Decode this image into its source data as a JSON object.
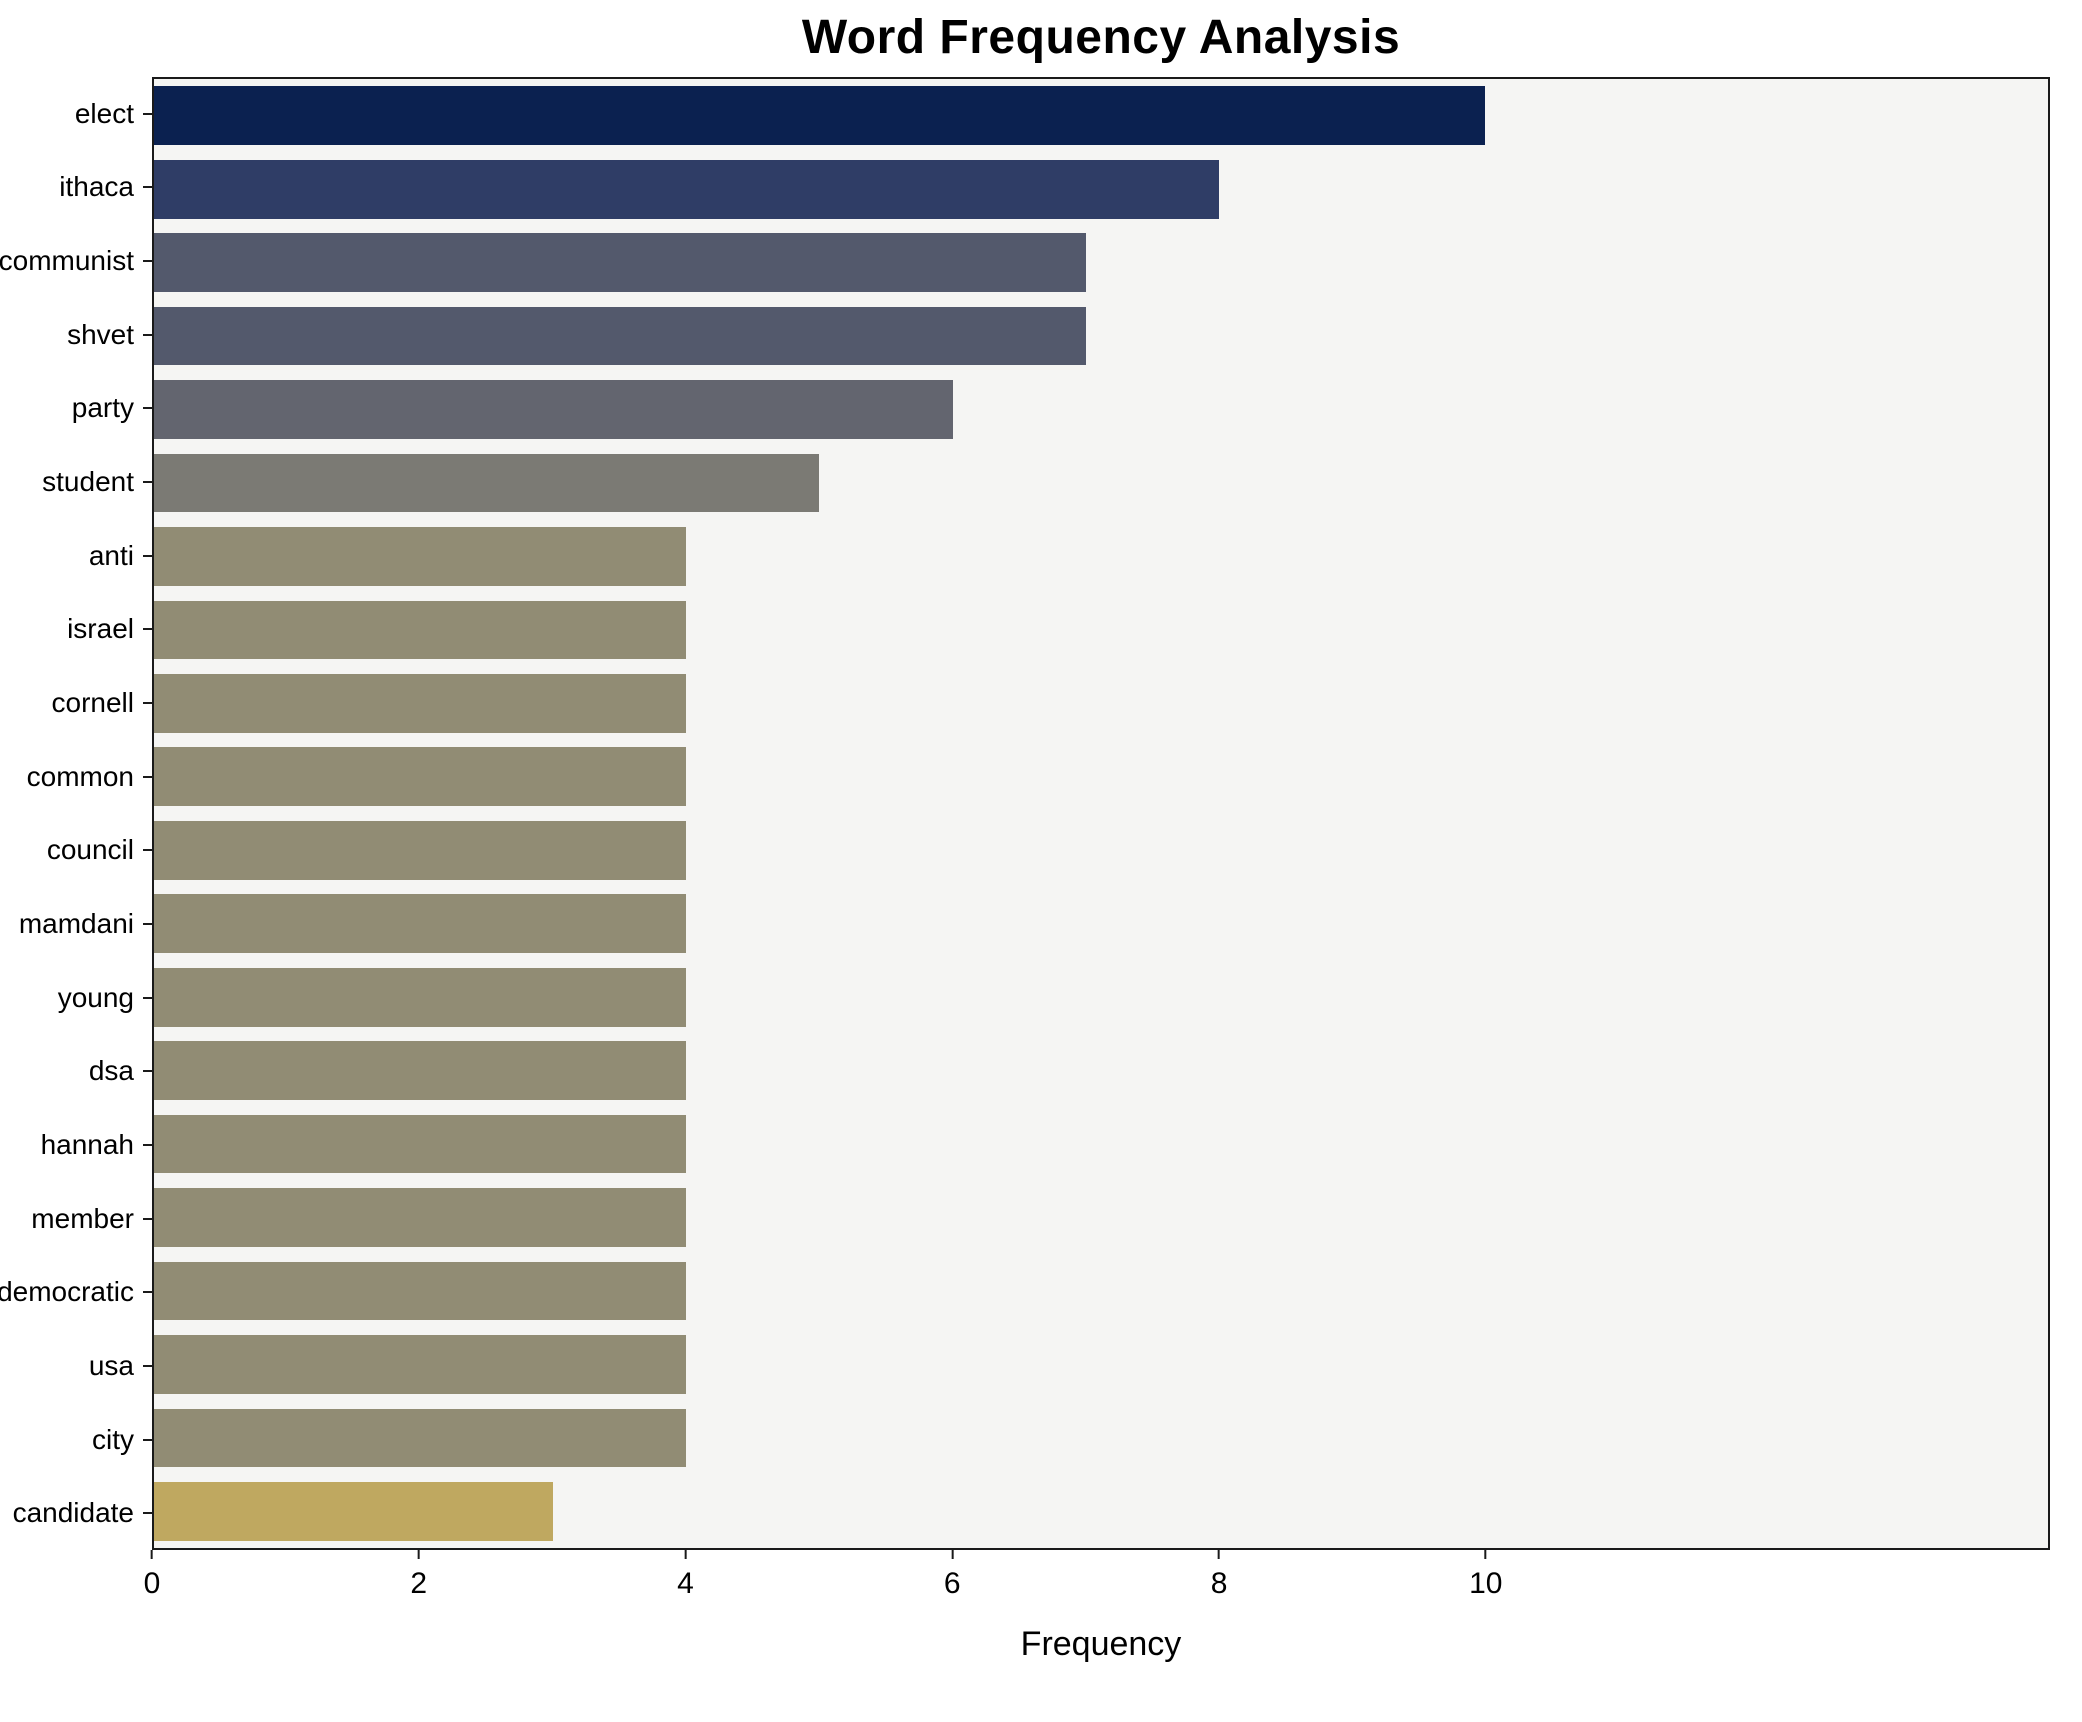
{
  "chart_data": {
    "type": "bar",
    "orientation": "horizontal",
    "title": "Word Frequency Analysis",
    "xlabel": "Frequency",
    "ylabel": "",
    "categories": [
      "elect",
      "ithaca",
      "communist",
      "shvet",
      "party",
      "student",
      "anti",
      "israel",
      "cornell",
      "common",
      "council",
      "mamdani",
      "young",
      "dsa",
      "hannah",
      "member",
      "democratic",
      "usa",
      "city",
      "candidate"
    ],
    "values": [
      10,
      8,
      7,
      7,
      6,
      5,
      4,
      4,
      4,
      4,
      4,
      4,
      4,
      4,
      4,
      4,
      4,
      4,
      4,
      3
    ],
    "bar_colors": [
      "#0b2150",
      "#2f3d66",
      "#53596c",
      "#53596c",
      "#63656f",
      "#7b7a74",
      "#918c74",
      "#918c74",
      "#918c74",
      "#918c74",
      "#918c74",
      "#918c74",
      "#918c74",
      "#918c74",
      "#918c74",
      "#918c74",
      "#918c74",
      "#918c74",
      "#918c74",
      "#bfa860"
    ],
    "xlim": [
      0,
      14.23
    ],
    "xticks": [
      0,
      2,
      4,
      6,
      8,
      10
    ],
    "grid": false,
    "legend": "none",
    "plot_background": "#f5f5f3",
    "figure_background": "#ffffff",
    "axis_color": "#1a1a1a"
  }
}
